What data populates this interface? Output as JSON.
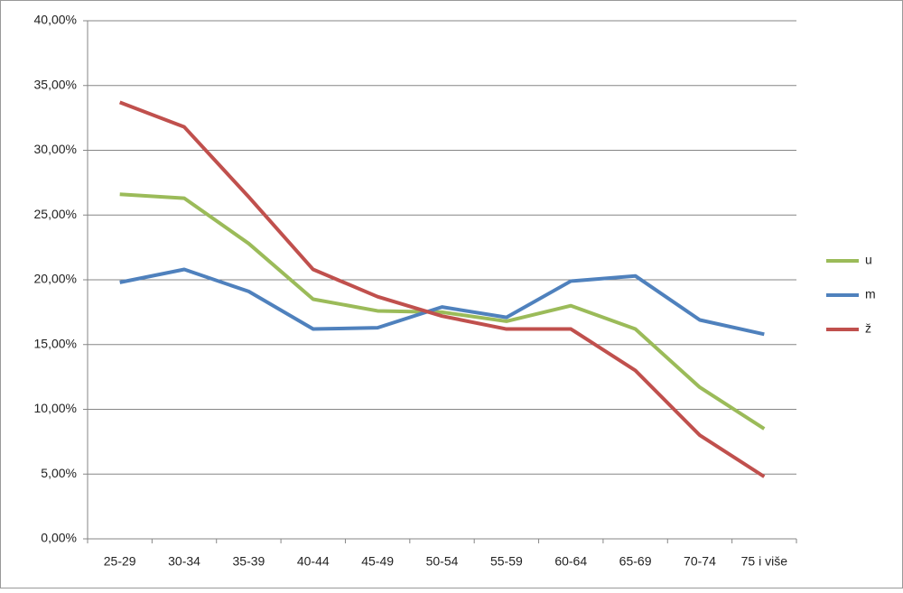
{
  "chart_data": {
    "type": "line",
    "categories": [
      "25-29",
      "30-34",
      "35-39",
      "40-44",
      "45-49",
      "50-54",
      "55-59",
      "60-64",
      "65-69",
      "70-74",
      "75 i više"
    ],
    "series": [
      {
        "name": "u",
        "color": "#9bbb59",
        "values": [
          26.6,
          26.3,
          22.8,
          18.5,
          17.6,
          17.5,
          16.8,
          18.0,
          16.2,
          11.7,
          8.5
        ]
      },
      {
        "name": "m",
        "color": "#4f81bd",
        "values": [
          19.8,
          20.8,
          19.1,
          16.2,
          16.3,
          17.9,
          17.1,
          19.9,
          20.3,
          16.9,
          15.8
        ]
      },
      {
        "name": "ž",
        "color": "#c0504d",
        "values": [
          33.7,
          31.8,
          26.4,
          20.8,
          18.7,
          17.2,
          16.2,
          16.2,
          13.0,
          8.0,
          4.8
        ]
      }
    ],
    "ylim": [
      0,
      40
    ],
    "yticks": [
      {
        "value": 0,
        "label": "0,00%"
      },
      {
        "value": 5,
        "label": "5,00%"
      },
      {
        "value": 10,
        "label": "10,00%"
      },
      {
        "value": 15,
        "label": "15,00%"
      },
      {
        "value": 20,
        "label": "20,00%"
      },
      {
        "value": 25,
        "label": "25,00%"
      },
      {
        "value": 30,
        "label": "30,00%"
      },
      {
        "value": 35,
        "label": "35,00%"
      },
      {
        "value": 40,
        "label": "40,00%"
      }
    ],
    "grid": true,
    "legend": "right"
  }
}
